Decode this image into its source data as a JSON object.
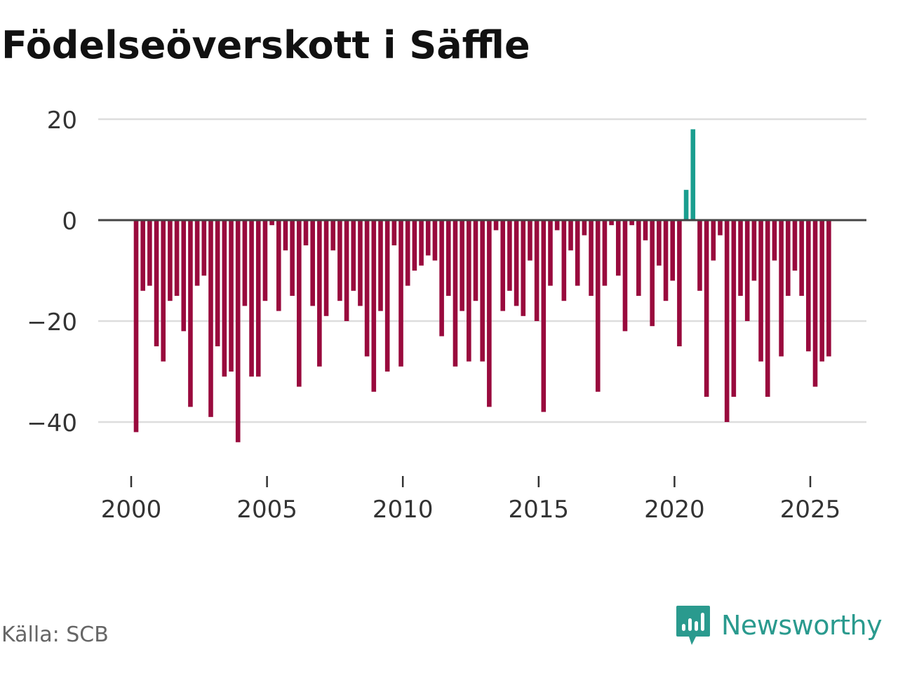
{
  "title": "Födelseöverskott i Säffle",
  "source": "Källa: SCB",
  "brand": "Newsworthy",
  "colors": {
    "positive": "#1a9e8f",
    "negative": "#990a3d",
    "brand": "#2a9a8e",
    "zero_line": "#444444",
    "grid": "#dddddd"
  },
  "chart_data": {
    "type": "bar",
    "title": "Födelseöverskott i Säffle",
    "xlabel": "",
    "ylabel": "",
    "ylim": [
      -45,
      20
    ],
    "yticks": [
      20,
      0,
      -20,
      -40
    ],
    "ytick_labels": [
      "20",
      "0",
      "−20",
      "−40"
    ],
    "xlim": [
      1999.3,
      2026.0
    ],
    "xticks": [
      2000,
      2005,
      2010,
      2015,
      2020,
      2025
    ],
    "xtick_labels": [
      "2000",
      "2005",
      "2010",
      "2015",
      "2020",
      "2025"
    ],
    "period": "quarterly",
    "start": 2000.0,
    "step": 0.25,
    "values": [
      -42,
      -14,
      -13,
      -25,
      -28,
      -16,
      -15,
      -22,
      -37,
      -13,
      -11,
      -39,
      -25,
      -31,
      -30,
      -44,
      -17,
      -31,
      -31,
      -16,
      -1,
      -18,
      -6,
      -15,
      -33,
      -5,
      -17,
      -29,
      -19,
      -6,
      -16,
      -20,
      -14,
      -17,
      -27,
      -34,
      -18,
      -30,
      -5,
      -29,
      -13,
      -10,
      -9,
      -7,
      -8,
      -23,
      -15,
      -29,
      -18,
      -28,
      -16,
      -28,
      -37,
      -2,
      -18,
      -14,
      -17,
      -19,
      -8,
      -20,
      -38,
      -13,
      -2,
      -16,
      -6,
      -13,
      -3,
      -15,
      -34,
      -13,
      -1,
      -11,
      -22,
      -1,
      -15,
      -4,
      -21,
      -9,
      -16,
      -12,
      -25,
      6,
      18,
      -14,
      -35,
      -8,
      -3,
      -40,
      -35,
      -15,
      -20,
      -12,
      -28,
      -35,
      -8,
      -27,
      -15,
      -10,
      -15,
      -26,
      -33,
      -28,
      -27
    ]
  }
}
